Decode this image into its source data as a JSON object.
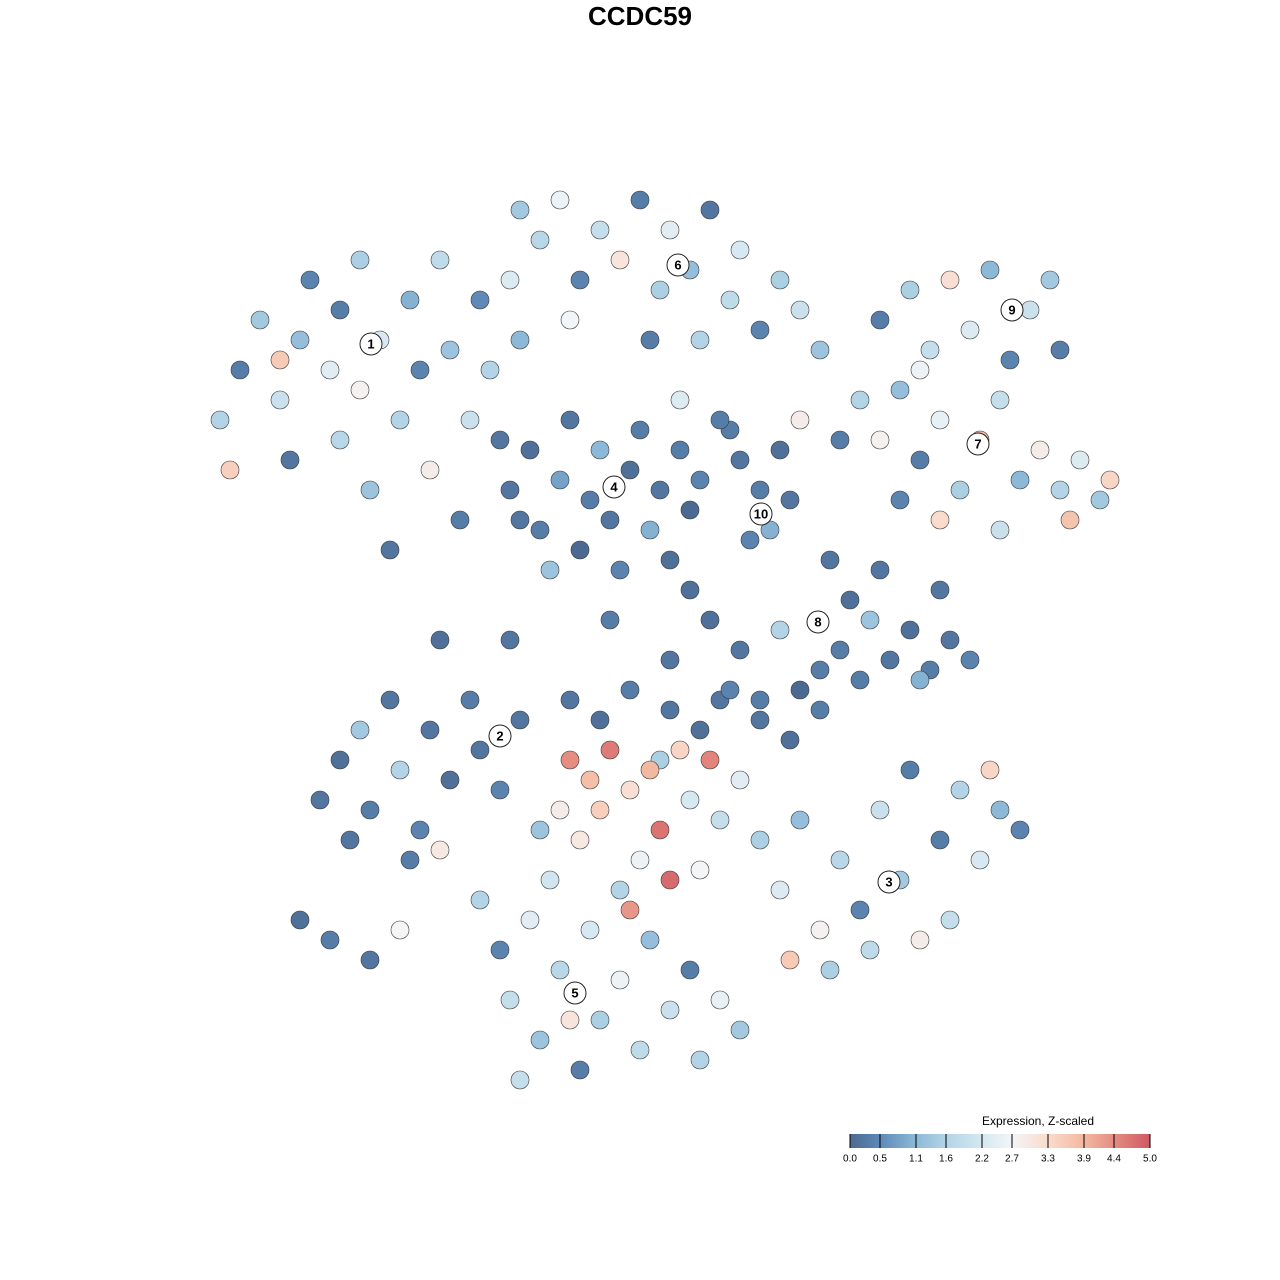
{
  "chart_data": {
    "type": "scatter",
    "title": "CCDC59",
    "x": [
      -42,
      -40,
      -38,
      -36,
      -35,
      -34,
      -33,
      -31,
      -30,
      -30,
      -28,
      -28,
      -27,
      -26,
      -25,
      -24,
      -23,
      -22,
      -21,
      -20,
      -19,
      -18,
      -17,
      -16,
      -15,
      -14,
      -13,
      -12,
      -41,
      -36,
      -10,
      -8,
      -6,
      -4,
      -2,
      0,
      2,
      3,
      5,
      7,
      9,
      10,
      12,
      14,
      16,
      18,
      -7,
      1,
      6,
      -12,
      24,
      27,
      29,
      31,
      33,
      35,
      37,
      39,
      41,
      42,
      22,
      24,
      26,
      28,
      30,
      32,
      34,
      36,
      38,
      40,
      42,
      44,
      46,
      47,
      30,
      26,
      36,
      43,
      20,
      28,
      -13,
      -11,
      -10,
      -8,
      -7,
      -6,
      -5,
      -4,
      -3,
      -2,
      -1,
      0,
      1,
      2,
      3,
      4,
      5,
      -9,
      -12,
      6,
      10,
      12,
      14,
      11,
      13,
      15,
      9,
      16,
      4,
      8,
      19,
      21,
      20,
      23,
      25,
      27,
      29,
      31,
      33,
      24,
      18,
      14,
      10,
      7,
      12,
      16,
      30,
      28,
      22,
      8,
      -20,
      -13,
      -3,
      5,
      3,
      -32,
      -30,
      -28,
      -27,
      -25,
      -24,
      -22,
      -21,
      -19,
      -17,
      -16,
      -14,
      -12,
      -23,
      -20,
      -29,
      -34,
      -31,
      -27,
      -24,
      -7,
      -4,
      -1,
      3,
      6,
      9,
      12,
      15,
      18,
      2,
      -7,
      -5,
      -3,
      -4,
      -1,
      1,
      2,
      3,
      -6,
      0,
      5,
      7,
      -8,
      4,
      -2,
      8,
      10,
      -10,
      -9,
      6,
      12,
      14,
      16,
      18,
      20,
      22,
      24,
      26,
      28,
      30,
      32,
      34,
      36,
      38,
      31,
      27,
      19,
      15,
      23,
      35,
      -16,
      -14,
      -13,
      -11,
      -10,
      -8,
      -6,
      -5,
      -4,
      -2,
      0,
      1,
      3,
      5,
      6,
      8,
      10,
      -12,
      -7,
      -1
    ],
    "y": [
      22,
      27,
      32,
      24,
      18,
      30,
      36,
      27,
      20,
      33,
      38,
      25,
      15,
      30,
      9,
      22,
      34,
      27,
      17,
      38,
      29,
      12,
      22,
      34,
      27,
      20,
      36,
      30,
      17,
      28,
      40,
      44,
      36,
      41,
      38,
      44,
      35,
      41,
      37,
      43,
      34,
      39,
      31,
      36,
      33,
      29,
      32,
      30,
      30,
      43,
      32,
      35,
      29,
      36,
      31,
      37,
      28,
      33,
      36,
      29,
      24,
      20,
      25,
      18,
      22,
      15,
      20,
      24,
      16,
      19,
      15,
      18,
      14,
      16,
      12,
      14,
      11,
      12,
      20,
      27,
      15,
      19,
      11,
      16,
      22,
      9,
      14,
      19,
      12,
      7,
      17,
      21,
      11,
      15,
      8,
      19,
      13,
      7,
      12,
      16,
      18,
      15,
      19,
      10,
      11,
      14,
      21,
      22,
      24,
      22,
      8,
      4,
      -1,
      2,
      -2,
      1,
      -3,
      0,
      -2,
      7,
      -3,
      1,
      -1,
      2,
      -6,
      -5,
      5,
      -4,
      -4,
      -6,
      0,
      0,
      2,
      5,
      -2,
      -16,
      -12,
      -9,
      -17,
      -6,
      -13,
      -19,
      -9,
      -14,
      -6,
      -11,
      -15,
      -8,
      -22,
      -21,
      -20,
      -28,
      -30,
      -32,
      -29,
      -6,
      -8,
      -5,
      -7,
      -9,
      -5,
      -8,
      -10,
      -7,
      -12,
      -12,
      -14,
      -11,
      -17,
      -15,
      -13,
      -19,
      -24,
      -20,
      -22,
      -16,
      -12,
      -17,
      -11,
      -25,
      -18,
      -14,
      -19,
      -24,
      -23,
      -20,
      -25,
      -18,
      -29,
      -22,
      -27,
      -17,
      -24,
      -30,
      -20,
      -15,
      -22,
      -17,
      -19,
      -28,
      -13,
      -33,
      -32,
      -31,
      -13,
      -26,
      -31,
      -36,
      -28,
      -40,
      -33,
      -43,
      -29,
      -38,
      -34,
      -41,
      -30,
      -37,
      -33,
      -42,
      -36,
      -39,
      -44,
      -38,
      -27
    ],
    "values": [
      1.6,
      0.3,
      1.4,
      2.0,
      0.2,
      1.2,
      0.4,
      2.4,
      1.7,
      0.3,
      1.5,
      2.8,
      1.3,
      2.2,
      0.2,
      1.6,
      1.0,
      0.4,
      2.9,
      1.8,
      1.3,
      0.3,
      2.0,
      0.5,
      1.6,
      0.2,
      2.3,
      1.1,
      3.5,
      3.6,
      1.7,
      2.6,
      0.4,
      1.9,
      3.1,
      0.3,
      1.5,
      2.4,
      1.2,
      0.2,
      1.8,
      2.2,
      0.4,
      1.5,
      2.0,
      1.3,
      2.7,
      0.3,
      1.6,
      1.4,
      0.3,
      1.5,
      1.9,
      3.2,
      2.3,
      1.1,
      0.4,
      2.0,
      1.4,
      0.3,
      1.6,
      2.8,
      1.2,
      0.3,
      2.5,
      1.5,
      3.9,
      1.9,
      1.1,
      2.9,
      1.6,
      2.3,
      1.4,
      3.4,
      3.3,
      0.4,
      2.0,
      3.7,
      0.3,
      2.6,
      0.2,
      0.1,
      0.3,
      0.8,
      0.2,
      0.0,
      0.3,
      1.1,
      0.2,
      0.4,
      0.1,
      0.3,
      1.0,
      0.2,
      0.1,
      0.3,
      0.0,
      1.3,
      0.2,
      0.4,
      0.2,
      0.3,
      0.1,
      0.4,
      1.0,
      0.2,
      0.3,
      2.9,
      2.3,
      0.3,
      0.2,
      0.1,
      0.3,
      1.3,
      0.2,
      0.1,
      0.3,
      0.2,
      0.4,
      0.2,
      0.3,
      1.6,
      0.2,
      0.1,
      0.3,
      0.0,
      0.2,
      1.0,
      0.3,
      0.2,
      0.1,
      0.2,
      0.3,
      0.1,
      0.2,
      0.2,
      0.1,
      1.4,
      0.3,
      0.2,
      1.6,
      0.4,
      0.2,
      0.1,
      0.3,
      0.2,
      0.4,
      0.2,
      0.3,
      3.0,
      0.2,
      0.1,
      0.3,
      0.2,
      2.7,
      0.2,
      0.1,
      0.3,
      0.2,
      0.1,
      0.4,
      0.2,
      0.1,
      0.3,
      1.5,
      4.4,
      3.8,
      4.6,
      3.5,
      3.2,
      3.9,
      4.7,
      4.8,
      3.0,
      2.6,
      2.2,
      4.5,
      2.9,
      3.4,
      1.6,
      1.9,
      2.4,
      1.3,
      2.1,
      2.7,
      1.5,
      2.3,
      1.2,
      2.8,
      1.7,
      0.4,
      2.0,
      1.4,
      2.9,
      0.3,
      1.6,
      2.2,
      1.1,
      0.4,
      1.9,
      0.3,
      1.5,
      3.6,
      1.8,
      3.4,
      1.6,
      0.4,
      1.9,
      2.4,
      1.3,
      1.7,
      0.3,
      2.2,
      1.5,
      2.6,
      1.8,
      1.2,
      2.0,
      0.3,
      1.6,
      2.5,
      1.4,
      1.9,
      3.1,
      4.3
    ],
    "xlim": [
      -50,
      50
    ],
    "ylim": [
      -50,
      50
    ],
    "annotations": [
      {
        "text": "1",
        "x": -26.9,
        "y": 29.6
      },
      {
        "text": "6",
        "x": 3.8,
        "y": 37.5
      },
      {
        "text": "9",
        "x": 37.2,
        "y": 33
      },
      {
        "text": "7",
        "x": 33.8,
        "y": 19.6
      },
      {
        "text": "4",
        "x": -2.6,
        "y": 15.3
      },
      {
        "text": "10",
        "x": 12.1,
        "y": 12.6
      },
      {
        "text": "8",
        "x": 17.8,
        "y": 1.8
      },
      {
        "text": "2",
        "x": -14,
        "y": -9.6
      },
      {
        "text": "3",
        "x": 24.9,
        "y": -24.2
      },
      {
        "text": "5",
        "x": -6.5,
        "y": -35.3
      }
    ],
    "colorbar": {
      "title": "Expression, Z-scaled",
      "lim": [
        0,
        5
      ],
      "ticks": [
        {
          "value": 0,
          "label": "0.0"
        },
        0.5,
        1.1,
        1.6,
        2.2,
        2.7,
        3.3,
        3.9,
        4.4,
        {
          "value": 5,
          "label": "5.0"
        }
      ],
      "colors": [
        "#4b6a91",
        "#5e89b8",
        "#8db9d8",
        "#b2d4e6",
        "#d6e8f1",
        "#f3f5f7",
        "#fadbcc",
        "#f3b8a0",
        "#e58d81",
        "#d05862"
      ]
    }
  }
}
